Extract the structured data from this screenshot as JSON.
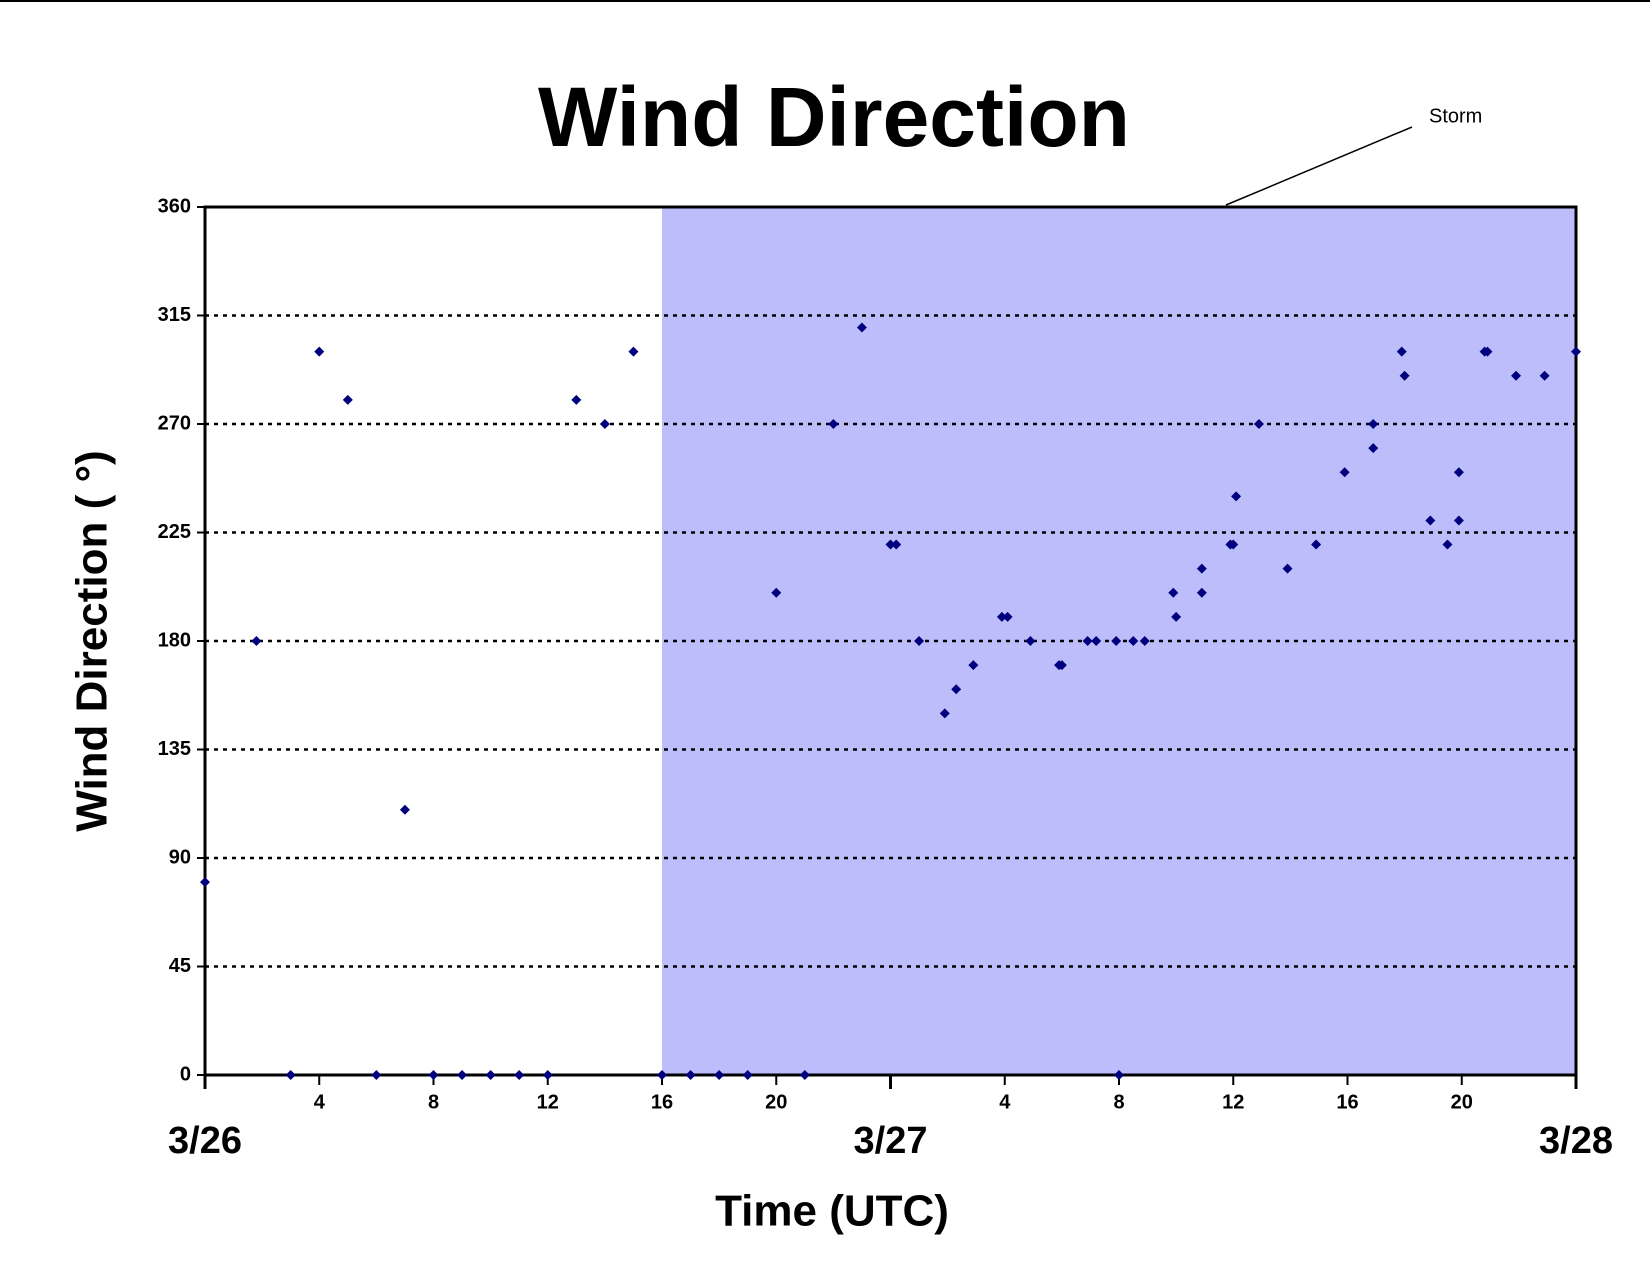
{
  "chart_data": {
    "type": "scatter",
    "title": "Wind Direction",
    "xlabel": "Time (UTC)",
    "ylabel": "Wind Direction ( °)",
    "annotation": "Storm",
    "storm_span": [
      16,
      48
    ],
    "storm_color": "#bdbdfb",
    "color": "#00007f",
    "x": [
      0,
      1.8,
      3,
      4,
      5,
      6,
      7,
      8,
      9,
      10,
      11,
      12,
      13,
      14,
      15,
      16,
      17,
      18,
      19,
      20,
      21,
      22,
      23,
      24,
      24.2,
      25,
      25.9,
      26.3,
      26.9,
      27.9,
      28.1,
      28.9,
      29.9,
      30,
      30.9,
      31.2,
      31.9,
      32,
      32.5,
      32.9,
      33.9,
      34,
      34.9,
      34.9,
      35.9,
      36,
      36.1,
      36.9,
      37.9,
      38.9,
      39.9,
      40.9,
      40.9,
      41.9,
      42,
      42.9,
      43.5,
      43.9,
      43.9,
      44.8,
      44.9,
      45.9,
      46.9,
      48
    ],
    "values": [
      80,
      180,
      0,
      300,
      280,
      0,
      110,
      0,
      0,
      0,
      0,
      0,
      280,
      270,
      300,
      0,
      0,
      0,
      0,
      200,
      0,
      270,
      310,
      220,
      220,
      180,
      150,
      160,
      170,
      190,
      190,
      180,
      170,
      170,
      180,
      180,
      180,
      0,
      180,
      180,
      200,
      190,
      200,
      210,
      220,
      220,
      240,
      270,
      210,
      220,
      250,
      260,
      270,
      300,
      290,
      230,
      220,
      230,
      250,
      300,
      300,
      290,
      290,
      300
    ],
    "xlim": [
      0,
      48
    ],
    "xticks": [
      4,
      8,
      12,
      16,
      20,
      {
        "value": 28,
        "label": "4"
      },
      {
        "value": 32,
        "label": "8"
      },
      {
        "value": 36,
        "label": "12"
      },
      {
        "value": 40,
        "label": "16"
      },
      {
        "value": 44,
        "label": "20"
      }
    ],
    "xdate_ticks": [
      {
        "value": 0,
        "label": "3/26"
      },
      {
        "value": 24,
        "label": "3/27"
      },
      {
        "value": 48,
        "label": "3/28"
      }
    ],
    "ylim": [
      0,
      360
    ],
    "yticks": [
      0,
      45,
      90,
      135,
      180,
      225,
      270,
      315,
      360
    ],
    "grid": true
  }
}
